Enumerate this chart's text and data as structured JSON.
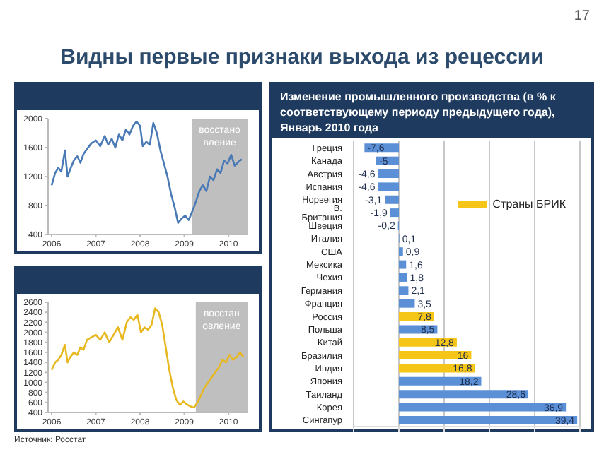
{
  "chart_data": [
    {
      "type": "other",
      "title": "Видны первые признаки выхода из рецессии",
      "annotations": [
        "17",
        "Источник: Росстат"
      ]
    },
    {
      "type": "line",
      "xlim": [
        2005.92,
        2010.43
      ],
      "xticks": [
        2006,
        2007,
        2008,
        2009,
        2010
      ],
      "ylim": [
        400,
        2000
      ],
      "yticks": [
        400,
        800,
        1200,
        1600,
        2000
      ],
      "marker": "none",
      "bands": [
        {
          "axis": "x",
          "from": 2009.17,
          "to": 2010.43,
          "label": "восстановление",
          "color": "#bfbfbf"
        }
      ],
      "series": [
        {
          "color": "#4a7ab5",
          "x": [
            2006.0,
            2006.08,
            2006.15,
            2006.22,
            2006.3,
            2006.36,
            2006.42,
            2006.5,
            2006.58,
            2006.65,
            2006.72,
            2006.8,
            2006.9,
            2007.0,
            2007.1,
            2007.2,
            2007.28,
            2007.36,
            2007.44,
            2007.52,
            2007.6,
            2007.68,
            2007.76,
            2007.84,
            2007.92,
            2008.0,
            2008.06,
            2008.14,
            2008.22,
            2008.3,
            2008.38,
            2008.46,
            2008.54,
            2008.62,
            2008.7,
            2008.78,
            2008.86,
            2008.94,
            2009.02,
            2009.1,
            2009.18,
            2009.26,
            2009.34,
            2009.42,
            2009.5,
            2009.58,
            2009.66,
            2009.74,
            2009.82,
            2009.9,
            2009.98,
            2010.06,
            2010.14,
            2010.22,
            2010.3
          ],
          "values": [
            1080,
            1250,
            1320,
            1270,
            1560,
            1200,
            1300,
            1420,
            1480,
            1390,
            1510,
            1580,
            1660,
            1700,
            1620,
            1760,
            1640,
            1720,
            1600,
            1780,
            1700,
            1850,
            1780,
            1900,
            1960,
            1900,
            1620,
            1680,
            1640,
            1940,
            1800,
            1560,
            1380,
            1200,
            960,
            780,
            560,
            620,
            660,
            600,
            720,
            850,
            1000,
            1080,
            1000,
            1200,
            1150,
            1300,
            1250,
            1420,
            1380,
            1500,
            1350,
            1400,
            1440
          ]
        }
      ]
    },
    {
      "type": "line",
      "xlim": [
        2005.92,
        2010.43
      ],
      "xticks": [
        2006,
        2007,
        2008,
        2009,
        2010
      ],
      "ylim": [
        400,
        2600
      ],
      "yticks": [
        400,
        600,
        800,
        1000,
        1200,
        1400,
        1600,
        1800,
        2000,
        2200,
        2400,
        2600
      ],
      "marker": "none",
      "bands": [
        {
          "axis": "x",
          "from": 2009.26,
          "to": 2010.43,
          "label": "восстановление",
          "color": "#bfbfbf"
        }
      ],
      "series": [
        {
          "color": "#e8b820",
          "x": [
            2006.0,
            2006.08,
            2006.15,
            2006.22,
            2006.3,
            2006.36,
            2006.42,
            2006.5,
            2006.58,
            2006.65,
            2006.72,
            2006.8,
            2006.9,
            2007.0,
            2007.1,
            2007.2,
            2007.3,
            2007.4,
            2007.5,
            2007.6,
            2007.7,
            2007.78,
            2007.86,
            2007.94,
            2008.02,
            2008.1,
            2008.18,
            2008.26,
            2008.34,
            2008.42,
            2008.5,
            2008.58,
            2008.66,
            2008.74,
            2008.82,
            2008.9,
            2008.98,
            2009.06,
            2009.14,
            2009.22,
            2009.3,
            2009.38,
            2009.46,
            2009.54,
            2009.62,
            2009.7,
            2009.78,
            2009.86,
            2009.94,
            2010.02,
            2010.1,
            2010.18,
            2010.26,
            2010.34
          ],
          "values": [
            1250,
            1400,
            1450,
            1550,
            1750,
            1400,
            1500,
            1600,
            1550,
            1700,
            1650,
            1850,
            1900,
            1950,
            1850,
            2000,
            1800,
            1950,
            2100,
            1850,
            2200,
            2300,
            2250,
            2350,
            2000,
            2100,
            2050,
            2150,
            2480,
            2400,
            2150,
            1700,
            1250,
            900,
            650,
            550,
            620,
            560,
            520,
            500,
            600,
            750,
            900,
            1000,
            1100,
            1200,
            1300,
            1450,
            1400,
            1550,
            1450,
            1500,
            1600,
            1500
          ]
        }
      ]
    },
    {
      "type": "bar",
      "title": "Изменение промышленного производства (в % к соответствующему периоду предыдущего года), Январь 2010 года",
      "orientation": "horizontal",
      "stacked": true,
      "grid": "x",
      "legend": "top right",
      "xlim": [
        -10,
        40
      ],
      "xticks": [
        {
          "value": -10,
          "label": null
        },
        {
          "value": 0,
          "label": null
        },
        {
          "value": 10,
          "label": null
        },
        {
          "value": 20,
          "label": null
        },
        {
          "value": 30,
          "label": null
        },
        {
          "value": 40,
          "label": null
        }
      ],
      "categories": [
        "Греция",
        "Канада",
        "Австрия",
        "Испания",
        "Норвегия",
        "В. Британия",
        "Швеция",
        "Италия",
        "США",
        "Мексика",
        "Чехия",
        "Германия",
        "Франция",
        "Россия",
        "Польша",
        "Китай",
        "Бразилия",
        "Индия",
        "Япония",
        "Таиланд",
        "Корея",
        "Сингапур"
      ],
      "series": [
        {
          "color": "#5b8fd6",
          "values": [
            -7.6,
            -5,
            -4.6,
            -4.6,
            -3.1,
            -1.9,
            -0.2,
            0.1,
            0.9,
            1.6,
            1.8,
            2.1,
            3.5,
            null,
            8.5,
            null,
            null,
            null,
            18.2,
            28.6,
            36.9,
            39.4
          ],
          "value_labels": [
            "-7,6",
            "-5",
            "-4,6",
            "-4,6",
            "-3,1",
            "-1,9",
            "-0,2",
            "0,1",
            "0,9",
            "1,6",
            "1,8",
            "2,1",
            "3,5",
            null,
            "8,5",
            null,
            null,
            null,
            "18,2",
            "28,6",
            "36,9",
            "39,4"
          ]
        },
        {
          "name": "Страны БРИК",
          "color": "#f5c518",
          "values": [
            null,
            null,
            null,
            null,
            null,
            null,
            null,
            null,
            null,
            null,
            null,
            null,
            null,
            7.8,
            null,
            12.8,
            16,
            16.8,
            null,
            null,
            null,
            null
          ],
          "value_labels": [
            null,
            null,
            null,
            null,
            null,
            null,
            null,
            null,
            null,
            null,
            null,
            null,
            null,
            "7,8",
            null,
            "12,8",
            "16",
            "16,8",
            null,
            null,
            null,
            null
          ]
        }
      ]
    }
  ]
}
